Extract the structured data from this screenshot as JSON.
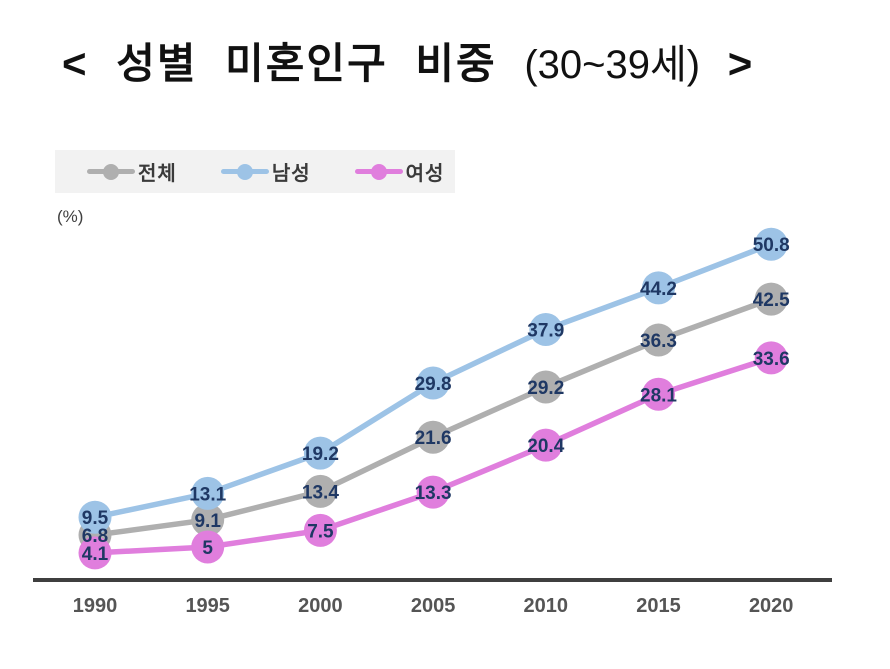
{
  "title": {
    "main": "< 성별 미혼인구 비중",
    "paren": "(30~39세)",
    "close": ">"
  },
  "percent_label": "(%)",
  "legend": {
    "background": "#f2f2f2",
    "items": [
      "전체",
      "남성",
      "여성"
    ]
  },
  "chart_data": {
    "type": "line",
    "title": "성별 미혼인구 비중 (30~39세)",
    "xlabel": "",
    "ylabel": "(%)",
    "x": [
      "1990",
      "1995",
      "2000",
      "2005",
      "2010",
      "2015",
      "2020"
    ],
    "ylim": [
      0,
      55
    ],
    "grid": false,
    "legend_position": "top-left",
    "series": [
      {
        "name": "전체",
        "color": "#afafaf",
        "values": [
          6.8,
          9.1,
          13.4,
          21.6,
          29.2,
          36.3,
          42.5
        ]
      },
      {
        "name": "남성",
        "color": "#9dc3e6",
        "values": [
          9.5,
          13.1,
          19.2,
          29.8,
          37.9,
          44.2,
          50.8
        ]
      },
      {
        "name": "여성",
        "color": "#e07edd",
        "values": [
          4.1,
          5,
          7.5,
          13.3,
          20.4,
          28.1,
          33.6
        ]
      }
    ],
    "label_color": "#1f3864",
    "axis_color": "#3f3f3f",
    "tick_color": "#555555"
  }
}
